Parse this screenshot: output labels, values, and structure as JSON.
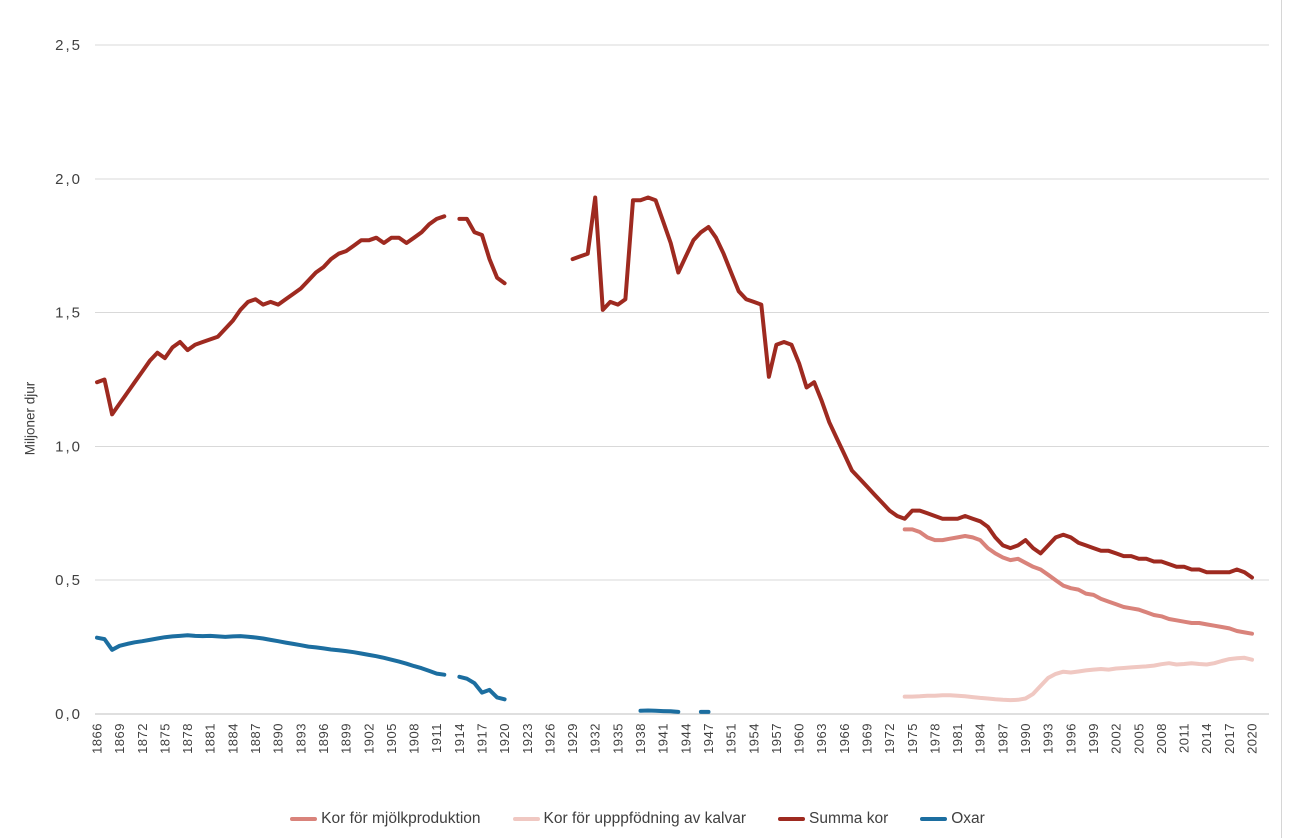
{
  "chart_data": {
    "type": "line",
    "title": "",
    "xlabel": "",
    "ylabel": "Miljoner djur",
    "ylim": [
      0,
      2.5
    ],
    "y_ticks": [
      0,
      0.5,
      1.0,
      1.5,
      2.0,
      2.5
    ],
    "y_tick_labels": [
      "0,0",
      "0,5",
      "1,0",
      "1,5",
      "2,0",
      "2,5"
    ],
    "x_label_interval": 3,
    "grid": true,
    "grid_color": "#D9D9D9",
    "axis_color": "#BFBFBF",
    "text_color": "#404040",
    "legend_position": "bottom",
    "note_missing_category": "1948 absent from x categories (axis jumps 1947 to 1951 in 3-step labels)",
    "years": [
      1866,
      1867,
      1868,
      1869,
      1870,
      1871,
      1872,
      1873,
      1874,
      1875,
      1876,
      1877,
      1878,
      1879,
      1880,
      1881,
      1882,
      1883,
      1884,
      1885,
      1886,
      1887,
      1888,
      1889,
      1890,
      1891,
      1892,
      1893,
      1894,
      1895,
      1896,
      1897,
      1898,
      1899,
      1900,
      1901,
      1902,
      1903,
      1904,
      1905,
      1906,
      1907,
      1908,
      1909,
      1910,
      1911,
      1912,
      1913,
      1914,
      1915,
      1916,
      1917,
      1918,
      1919,
      1920,
      1921,
      1922,
      1923,
      1924,
      1925,
      1926,
      1927,
      1928,
      1929,
      1930,
      1931,
      1932,
      1933,
      1934,
      1935,
      1936,
      1937,
      1938,
      1939,
      1940,
      1941,
      1942,
      1943,
      1944,
      1945,
      1946,
      1947,
      1949,
      1950,
      1951,
      1952,
      1953,
      1954,
      1955,
      1956,
      1957,
      1958,
      1959,
      1960,
      1961,
      1962,
      1963,
      1964,
      1965,
      1966,
      1967,
      1968,
      1969,
      1970,
      1971,
      1972,
      1973,
      1974,
      1975,
      1976,
      1977,
      1978,
      1979,
      1980,
      1981,
      1982,
      1983,
      1984,
      1985,
      1986,
      1987,
      1988,
      1989,
      1990,
      1991,
      1992,
      1993,
      1994,
      1995,
      1996,
      1997,
      1998,
      1999,
      2000,
      2001,
      2002,
      2003,
      2004,
      2005,
      2006,
      2007,
      2008,
      2009,
      2010,
      2011,
      2012,
      2013,
      2014,
      2015,
      2016,
      2017,
      2018,
      2019,
      2020
    ],
    "series": [
      {
        "id": "kor-for-mjolkproduktion",
        "name": "Kor för mjölkproduktion",
        "color": "#D9837B",
        "start_year": 1974,
        "values": [
          0.69,
          0.69,
          0.68,
          0.66,
          0.65,
          0.65,
          0.655,
          0.66,
          0.665,
          0.66,
          0.65,
          0.62,
          0.6,
          0.585,
          0.575,
          0.58,
          0.565,
          0.55,
          0.54,
          0.52,
          0.5,
          0.48,
          0.47,
          0.465,
          0.45,
          0.445,
          0.43,
          0.42,
          0.41,
          0.4,
          0.395,
          0.39,
          0.38,
          0.37,
          0.365,
          0.355,
          0.35,
          0.345,
          0.34,
          0.34,
          0.335,
          0.33,
          0.325,
          0.32,
          0.31,
          0.305,
          0.3
        ]
      },
      {
        "id": "kor-for-upppfodning-av-kalvar",
        "name": "Kor för upppfödning av kalvar",
        "color": "#F0C8C2",
        "start_year": 1974,
        "values": [
          0.065,
          0.065,
          0.066,
          0.068,
          0.068,
          0.07,
          0.07,
          0.068,
          0.066,
          0.063,
          0.06,
          0.058,
          0.055,
          0.053,
          0.052,
          0.053,
          0.058,
          0.075,
          0.105,
          0.135,
          0.15,
          0.158,
          0.155,
          0.159,
          0.163,
          0.166,
          0.168,
          0.166,
          0.17,
          0.172,
          0.174,
          0.176,
          0.178,
          0.181,
          0.186,
          0.19,
          0.185,
          0.187,
          0.19,
          0.187,
          0.185,
          0.19,
          0.198,
          0.205,
          0.208,
          0.21,
          0.203
        ]
      },
      {
        "id": "summa-kor",
        "name": "Summa kor",
        "color": "#9E2A20",
        "start_year": 1866,
        "values": [
          1.24,
          1.25,
          1.12,
          1.16,
          1.2,
          1.24,
          1.28,
          1.32,
          1.35,
          1.33,
          1.37,
          1.39,
          1.36,
          1.38,
          1.39,
          1.4,
          1.41,
          1.44,
          1.47,
          1.51,
          1.54,
          1.55,
          1.53,
          1.54,
          1.53,
          1.55,
          1.57,
          1.59,
          1.62,
          1.65,
          1.67,
          1.7,
          1.72,
          1.73,
          1.75,
          1.77,
          1.77,
          1.78,
          1.76,
          1.78,
          1.78,
          1.76,
          1.78,
          1.8,
          1.83,
          1.85,
          1.86,
          null,
          1.85,
          1.85,
          1.8,
          1.79,
          1.7,
          1.63,
          1.61,
          null,
          null,
          null,
          null,
          null,
          null,
          null,
          null,
          1.7,
          1.71,
          1.72,
          1.93,
          1.51,
          1.54,
          1.53,
          1.55,
          1.92,
          1.92,
          1.93,
          1.92,
          1.84,
          1.76,
          1.65,
          1.71,
          1.77,
          1.8,
          1.82,
          1.78,
          1.72,
          1.65,
          1.58,
          1.55,
          1.54,
          1.53,
          1.26,
          1.38,
          1.39,
          1.38,
          1.31,
          1.22,
          1.24,
          1.17,
          1.09,
          1.03,
          0.97,
          0.91,
          0.88,
          0.85,
          0.82,
          0.79,
          0.76,
          0.74,
          0.73,
          0.76,
          0.76,
          0.75,
          0.74,
          0.73,
          0.73,
          0.73,
          0.74,
          0.73,
          0.72,
          0.7,
          0.66,
          0.63,
          0.62,
          0.63,
          0.65,
          0.62,
          0.6,
          0.63,
          0.66,
          0.67,
          0.66,
          0.64,
          0.63,
          0.62,
          0.61,
          0.61,
          0.6,
          0.59,
          0.59,
          0.58,
          0.58,
          0.57,
          0.57,
          0.56,
          0.55,
          0.55,
          0.54,
          0.54,
          0.53,
          0.53,
          0.53,
          0.53,
          0.54,
          0.53,
          0.51
        ]
      },
      {
        "id": "oxar",
        "name": "Oxar",
        "color": "#1C6EA0",
        "start_year": 1866,
        "values": [
          0.285,
          0.28,
          0.24,
          0.255,
          0.262,
          0.268,
          0.272,
          0.277,
          0.282,
          0.287,
          0.29,
          0.292,
          0.294,
          0.292,
          0.291,
          0.292,
          0.29,
          0.288,
          0.29,
          0.291,
          0.289,
          0.286,
          0.282,
          0.277,
          0.272,
          0.267,
          0.262,
          0.257,
          0.252,
          0.249,
          0.245,
          0.241,
          0.238,
          0.235,
          0.231,
          0.226,
          0.221,
          0.216,
          0.21,
          0.203,
          0.196,
          0.188,
          0.179,
          0.171,
          0.161,
          0.151,
          0.147,
          null,
          0.139,
          0.132,
          0.115,
          0.08,
          0.09,
          0.062,
          0.055,
          null,
          null,
          null,
          null,
          null,
          null,
          null,
          null,
          null,
          null,
          null,
          null,
          null,
          null,
          null,
          null,
          null,
          0.012,
          0.013,
          0.012,
          0.011,
          0.01,
          0.008,
          null,
          null,
          0.008,
          0.008
        ]
      }
    ]
  }
}
